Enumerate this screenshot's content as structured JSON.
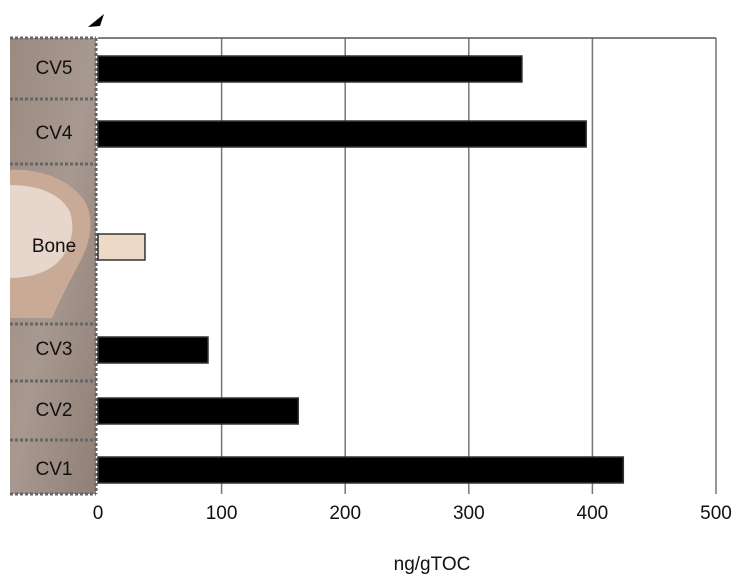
{
  "chart_data": {
    "type": "hbar",
    "categories": [
      "CV5",
      "CV4",
      "Bone",
      "CV3",
      "CV2",
      "CV1"
    ],
    "values": [
      343,
      395,
      38,
      89,
      162,
      425
    ],
    "colors": [
      "#000000",
      "#000000",
      "#ecd9c6",
      "#000000",
      "#000000",
      "#000000"
    ],
    "xlim": [
      0,
      500
    ],
    "xticks": [
      0,
      100,
      200,
      300,
      400,
      500
    ],
    "x_label": "ng/gTOC",
    "grid": true
  }
}
